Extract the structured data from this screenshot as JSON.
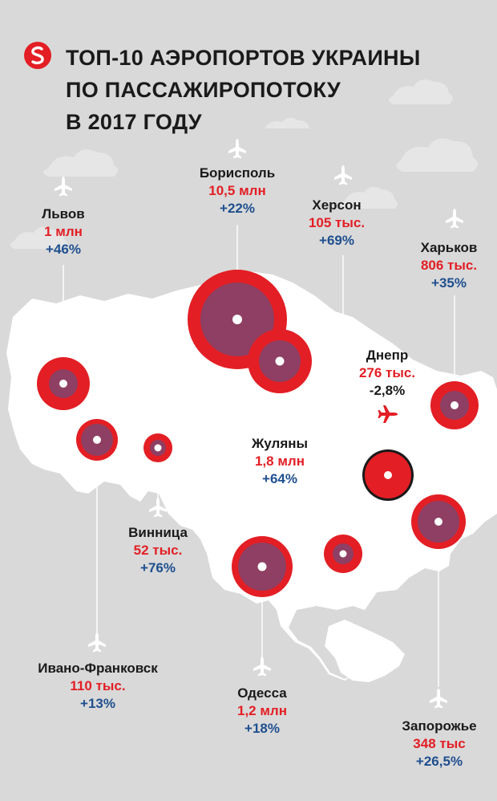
{
  "title": {
    "line1": "ТОП-10 АЭРОПОРТОВ УКРАИНЫ",
    "line2": "ПО ПАССАЖИРОПОТОКУ",
    "line3": "В 2017 ГОДУ"
  },
  "colors": {
    "background": "#d9d9d9",
    "land": "#ffffff",
    "accent_red": "#e31e24",
    "dark_red": "#8b1a1a",
    "blue": "#1f4f8f",
    "circle_center": "#8e3f63",
    "sea": "#c8c8c8"
  },
  "airports": {
    "borispol": {
      "name": "Борисполь",
      "passengers": "10,5 млн",
      "change": "+22%",
      "passengers_mln": 10.5
    },
    "lvov": {
      "name": "Львов",
      "passengers": "1 млн",
      "change": "+46%",
      "passengers_mln": 1.0
    },
    "kherson": {
      "name": "Херсон",
      "passengers": "105 тыс.",
      "change": "+69%",
      "passengers_mln": 0.105
    },
    "kharkov": {
      "name": "Харьков",
      "passengers": "806 тыс.",
      "change": "+35%",
      "passengers_mln": 0.806
    },
    "dnepr": {
      "name": "Днепр",
      "passengers": "276 тыс.",
      "change": "-2,8%",
      "passengers_mln": 0.276
    },
    "zhulyany": {
      "name": "Жуляны",
      "passengers": "1,8 млн",
      "change": "+64%",
      "passengers_mln": 1.8
    },
    "vinnitsa": {
      "name": "Винница",
      "passengers": "52 тыс.",
      "change": "+76%",
      "passengers_mln": 0.052
    },
    "ivano": {
      "name": "Ивано-Франковск",
      "passengers": "110 тыс.",
      "change": "+13%",
      "passengers_mln": 0.11
    },
    "odessa": {
      "name": "Одесса",
      "passengers": "1,2 млн",
      "change": "+18%",
      "passengers_mln": 1.2
    },
    "zaporozhe": {
      "name": "Запорожье",
      "passengers": "348 тыс",
      "change": "+26,5%",
      "passengers_mln": 0.348
    }
  },
  "icons": {
    "airplane": "airplane-icon",
    "logo": "logo-icon"
  }
}
